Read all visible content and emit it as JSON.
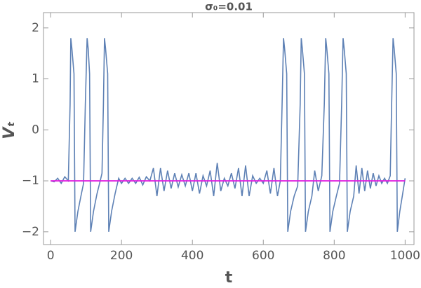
{
  "chart_data": {
    "type": "line",
    "title": "σ₀=0.01",
    "xlabel": "t",
    "ylabel": "Vₜ",
    "xlim": [
      -20,
      1025
    ],
    "ylim": [
      -2.25,
      2.3
    ],
    "xticks": [
      0,
      200,
      400,
      600,
      800,
      1000
    ],
    "yticks": [
      {
        "value": -2,
        "label": "−2"
      },
      {
        "value": -1,
        "label": "−1"
      },
      0,
      1,
      2
    ],
    "series": [
      {
        "color": "#5e81b5",
        "x": [
          0,
          10,
          20,
          30,
          40,
          50,
          55,
          57,
          60,
          66,
          69,
          77,
          87,
          93,
          98,
          103,
          106,
          110,
          113,
          121,
          131,
          140,
          145,
          149,
          152,
          155,
          161,
          164,
          172,
          182,
          192,
          200,
          210,
          220,
          230,
          240,
          250,
          260,
          270,
          280,
          290,
          300,
          310,
          320,
          330,
          340,
          350,
          360,
          370,
          380,
          390,
          400,
          410,
          420,
          430,
          440,
          450,
          460,
          470,
          480,
          490,
          500,
          510,
          520,
          530,
          540,
          550,
          560,
          570,
          580,
          590,
          600,
          610,
          620,
          630,
          640,
          648,
          653,
          657,
          660,
          666,
          669,
          677,
          687,
          697,
          704,
          707,
          710,
          716,
          719,
          727,
          737,
          745,
          755,
          765,
          772,
          776,
          779,
          785,
          788,
          796,
          806,
          815,
          821,
          825,
          828,
          834,
          837,
          845,
          855,
          862,
          870,
          878,
          886,
          894,
          902,
          910,
          918,
          926,
          934,
          942,
          950,
          958,
          962,
          966,
          969,
          975,
          978,
          985,
          992,
          1000
        ],
        "values": [
          -1,
          -1.02,
          -0.95,
          -1.05,
          -0.92,
          -1.0,
          0.5,
          1.8,
          1.6,
          1.1,
          -2.0,
          -1.6,
          -1.25,
          -1.05,
          0.5,
          1.8,
          1.6,
          1.1,
          -2.0,
          -1.6,
          -1.25,
          -1.0,
          -0.85,
          0.5,
          1.8,
          1.6,
          1.1,
          -2.0,
          -1.6,
          -1.25,
          -0.95,
          -1.05,
          -0.95,
          -1.05,
          -0.95,
          -1.05,
          -0.93,
          -1.08,
          -0.92,
          -1.0,
          -0.75,
          -1.3,
          -0.75,
          -1.2,
          -0.8,
          -1.15,
          -0.85,
          -1.12,
          -0.88,
          -1.1,
          -0.85,
          -1.2,
          -0.85,
          -1.25,
          -0.9,
          -1.1,
          -0.8,
          -1.3,
          -0.65,
          -1.2,
          -0.95,
          -1.1,
          -0.85,
          -1.15,
          -0.75,
          -1.3,
          -0.7,
          -1.3,
          -0.9,
          -1.05,
          -0.95,
          -1.05,
          -0.8,
          -1.25,
          -0.75,
          -1.3,
          -1.0,
          0.5,
          1.8,
          1.6,
          1.1,
          -2.0,
          -1.6,
          -1.3,
          -1.1,
          0.5,
          1.8,
          1.6,
          1.1,
          -2.0,
          -1.6,
          -1.3,
          -0.8,
          -1.2,
          -0.9,
          0.5,
          1.8,
          1.6,
          1.1,
          -2.0,
          -1.6,
          -1.3,
          -1.05,
          0.5,
          1.8,
          1.6,
          1.1,
          -2.0,
          -1.6,
          -1.3,
          -0.7,
          -1.25,
          -0.75,
          -1.2,
          -0.8,
          -1.15,
          -0.85,
          -1.1,
          -0.9,
          -1.05,
          -0.95,
          -1.05,
          -0.9,
          0.5,
          1.8,
          1.6,
          1.1,
          -2.0,
          -1.6,
          -1.3,
          -0.95
        ]
      },
      {
        "color": "#e020e0",
        "x": [
          0,
          1000
        ],
        "values": [
          -1,
          -1
        ]
      }
    ]
  }
}
